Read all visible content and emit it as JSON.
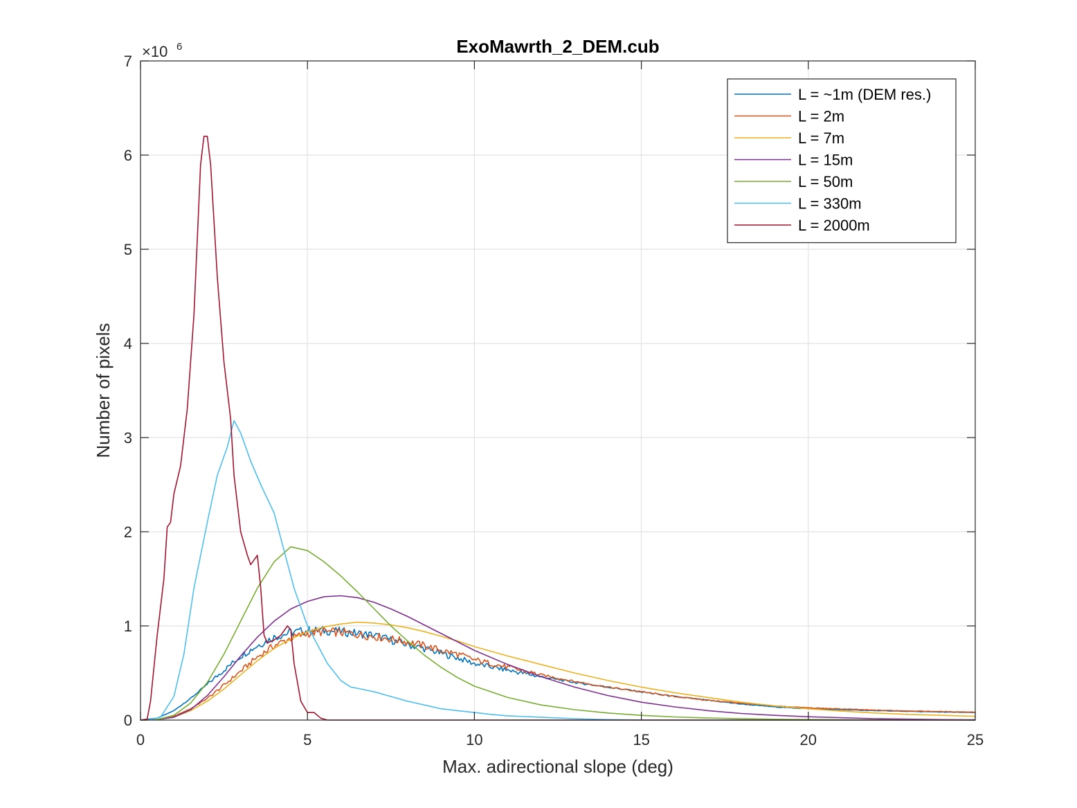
{
  "chart_data": {
    "type": "line",
    "title": "ExoMawrth_2_DEM.cub",
    "xlabel": "Max. adirectional slope (deg)",
    "ylabel": "Number of pixels",
    "xlim": [
      0,
      25
    ],
    "ylim": [
      0,
      7000000
    ],
    "xticks": [
      0,
      5,
      10,
      15,
      20,
      25
    ],
    "yticks": [
      0,
      1,
      2,
      3,
      4,
      5,
      6,
      7
    ],
    "y_exponent_base": "×10",
    "y_exponent_power": "6",
    "y_scale": 1000000,
    "grid": true,
    "legend_position": "top-right",
    "series": [
      {
        "name": "L = ~1m (DEM res.)",
        "color": "#0072BD",
        "noise": true,
        "points": [
          [
            0,
            0
          ],
          [
            0.5,
            20000
          ],
          [
            1,
            100000
          ],
          [
            1.5,
            230000
          ],
          [
            2,
            380000
          ],
          [
            2.5,
            530000
          ],
          [
            3,
            680000
          ],
          [
            3.5,
            790000
          ],
          [
            4,
            880000
          ],
          [
            4.5,
            930000
          ],
          [
            5,
            950000
          ],
          [
            5.5,
            950000
          ],
          [
            6,
            940000
          ],
          [
            6.5,
            920000
          ],
          [
            7,
            900000
          ],
          [
            7.5,
            850000
          ],
          [
            8,
            800000
          ],
          [
            8.5,
            760000
          ],
          [
            9,
            710000
          ],
          [
            9.5,
            660000
          ],
          [
            10,
            600000
          ],
          [
            11,
            530000
          ],
          [
            12,
            460000
          ],
          [
            13,
            400000
          ],
          [
            14,
            350000
          ],
          [
            15,
            300000
          ],
          [
            16,
            250000
          ],
          [
            17,
            210000
          ],
          [
            18,
            170000
          ],
          [
            19,
            140000
          ],
          [
            20,
            120000
          ],
          [
            22,
            100000
          ],
          [
            24,
            85000
          ],
          [
            25,
            80000
          ]
        ]
      },
      {
        "name": "L = 2m",
        "color": "#D95319",
        "noise": true,
        "points": [
          [
            0,
            0
          ],
          [
            0.5,
            5000
          ],
          [
            1,
            40000
          ],
          [
            1.5,
            120000
          ],
          [
            2,
            230000
          ],
          [
            2.5,
            370000
          ],
          [
            3,
            520000
          ],
          [
            3.5,
            670000
          ],
          [
            4,
            790000
          ],
          [
            4.5,
            870000
          ],
          [
            5,
            920000
          ],
          [
            5.5,
            940000
          ],
          [
            6,
            930000
          ],
          [
            6.5,
            910000
          ],
          [
            7,
            890000
          ],
          [
            7.5,
            860000
          ],
          [
            8,
            830000
          ],
          [
            8.5,
            790000
          ],
          [
            9,
            740000
          ],
          [
            9.5,
            700000
          ],
          [
            10,
            640000
          ],
          [
            11,
            560000
          ],
          [
            12,
            480000
          ],
          [
            13,
            410000
          ],
          [
            14,
            350000
          ],
          [
            15,
            300000
          ],
          [
            16,
            250000
          ],
          [
            17,
            210000
          ],
          [
            18,
            180000
          ],
          [
            19,
            150000
          ],
          [
            20,
            130000
          ],
          [
            22,
            105000
          ],
          [
            24,
            90000
          ],
          [
            25,
            85000
          ]
        ]
      },
      {
        "name": "L = 7m",
        "color": "#EDB120",
        "noise": false,
        "points": [
          [
            0,
            0
          ],
          [
            0.5,
            5000
          ],
          [
            1,
            30000
          ],
          [
            1.5,
            100000
          ],
          [
            2,
            200000
          ],
          [
            2.5,
            330000
          ],
          [
            3,
            480000
          ],
          [
            3.5,
            630000
          ],
          [
            4,
            760000
          ],
          [
            4.5,
            860000
          ],
          [
            5,
            940000
          ],
          [
            5.5,
            990000
          ],
          [
            6,
            1020000
          ],
          [
            6.5,
            1040000
          ],
          [
            7,
            1030000
          ],
          [
            7.5,
            1010000
          ],
          [
            8,
            980000
          ],
          [
            8.5,
            940000
          ],
          [
            9,
            890000
          ],
          [
            9.5,
            840000
          ],
          [
            10,
            780000
          ],
          [
            11,
            680000
          ],
          [
            12,
            590000
          ],
          [
            13,
            500000
          ],
          [
            14,
            420000
          ],
          [
            15,
            350000
          ],
          [
            16,
            290000
          ],
          [
            17,
            240000
          ],
          [
            18,
            190000
          ],
          [
            19,
            150000
          ],
          [
            20,
            120000
          ],
          [
            21,
            95000
          ],
          [
            22,
            75000
          ],
          [
            23,
            60000
          ],
          [
            24,
            50000
          ],
          [
            25,
            40000
          ]
        ]
      },
      {
        "name": "L = 15m",
        "color": "#7E2F8E",
        "noise": false,
        "points": [
          [
            0,
            0
          ],
          [
            0.5,
            5000
          ],
          [
            1,
            30000
          ],
          [
            1.5,
            110000
          ],
          [
            2,
            260000
          ],
          [
            2.5,
            460000
          ],
          [
            3,
            680000
          ],
          [
            3.5,
            880000
          ],
          [
            4,
            1050000
          ],
          [
            4.5,
            1180000
          ],
          [
            5,
            1260000
          ],
          [
            5.5,
            1310000
          ],
          [
            6,
            1320000
          ],
          [
            6.5,
            1300000
          ],
          [
            7,
            1250000
          ],
          [
            7.5,
            1180000
          ],
          [
            8,
            1100000
          ],
          [
            8.5,
            1010000
          ],
          [
            9,
            920000
          ],
          [
            9.5,
            830000
          ],
          [
            10,
            740000
          ],
          [
            11,
            590000
          ],
          [
            12,
            460000
          ],
          [
            13,
            350000
          ],
          [
            14,
            260000
          ],
          [
            15,
            190000
          ],
          [
            16,
            140000
          ],
          [
            17,
            100000
          ],
          [
            18,
            70000
          ],
          [
            19,
            50000
          ],
          [
            20,
            35000
          ],
          [
            22,
            15000
          ],
          [
            24,
            5000
          ],
          [
            25,
            3000
          ]
        ]
      },
      {
        "name": "L = 50m",
        "color": "#77AC30",
        "noise": false,
        "points": [
          [
            0,
            0
          ],
          [
            0.5,
            5000
          ],
          [
            1,
            50000
          ],
          [
            1.5,
            180000
          ],
          [
            2,
            400000
          ],
          [
            2.5,
            700000
          ],
          [
            3,
            1050000
          ],
          [
            3.5,
            1400000
          ],
          [
            4,
            1680000
          ],
          [
            4.5,
            1840000
          ],
          [
            5,
            1800000
          ],
          [
            5.5,
            1680000
          ],
          [
            6,
            1530000
          ],
          [
            6.5,
            1360000
          ],
          [
            7,
            1180000
          ],
          [
            7.5,
            1000000
          ],
          [
            8,
            840000
          ],
          [
            8.5,
            690000
          ],
          [
            9,
            560000
          ],
          [
            9.5,
            450000
          ],
          [
            10,
            360000
          ],
          [
            11,
            240000
          ],
          [
            12,
            160000
          ],
          [
            13,
            110000
          ],
          [
            14,
            75000
          ],
          [
            15,
            50000
          ],
          [
            16,
            33000
          ],
          [
            17,
            22000
          ],
          [
            18,
            14000
          ],
          [
            19,
            9000
          ],
          [
            20,
            6000
          ],
          [
            22,
            2000
          ],
          [
            25,
            500
          ]
        ]
      },
      {
        "name": "L = 330m",
        "color": "#4DBEEE",
        "noise": false,
        "points": [
          [
            0,
            0
          ],
          [
            0.3,
            5000
          ],
          [
            0.6,
            30000
          ],
          [
            1,
            250000
          ],
          [
            1.3,
            700000
          ],
          [
            1.6,
            1400000
          ],
          [
            2,
            2100000
          ],
          [
            2.3,
            2600000
          ],
          [
            2.6,
            2900000
          ],
          [
            2.8,
            3180000
          ],
          [
            3,
            3050000
          ],
          [
            3.3,
            2750000
          ],
          [
            3.6,
            2500000
          ],
          [
            4,
            2200000
          ],
          [
            4.3,
            1800000
          ],
          [
            4.6,
            1400000
          ],
          [
            5,
            1000000
          ],
          [
            5.3,
            800000
          ],
          [
            5.6,
            600000
          ],
          [
            6,
            420000
          ],
          [
            6.3,
            350000
          ],
          [
            6.6,
            330000
          ],
          [
            7,
            300000
          ],
          [
            7.5,
            250000
          ],
          [
            8,
            200000
          ],
          [
            8.5,
            160000
          ],
          [
            9,
            120000
          ],
          [
            9.5,
            100000
          ],
          [
            10,
            80000
          ],
          [
            10.5,
            60000
          ],
          [
            11,
            45000
          ],
          [
            12,
            30000
          ],
          [
            13,
            15000
          ],
          [
            14,
            5000
          ],
          [
            15,
            1000
          ],
          [
            16,
            0
          ],
          [
            25,
            0
          ]
        ]
      },
      {
        "name": "L = 2000m",
        "color": "#A2142F",
        "noise": false,
        "points": [
          [
            0,
            0
          ],
          [
            0.2,
            10000
          ],
          [
            0.3,
            200000
          ],
          [
            0.5,
            900000
          ],
          [
            0.7,
            1500000
          ],
          [
            0.8,
            2050000
          ],
          [
            0.9,
            2100000
          ],
          [
            1,
            2400000
          ],
          [
            1.2,
            2700000
          ],
          [
            1.4,
            3300000
          ],
          [
            1.6,
            4300000
          ],
          [
            1.8,
            5900000
          ],
          [
            1.9,
            6200000
          ],
          [
            2,
            6200000
          ],
          [
            2.1,
            5900000
          ],
          [
            2.3,
            4700000
          ],
          [
            2.5,
            3800000
          ],
          [
            2.7,
            3200000
          ],
          [
            2.8,
            2600000
          ],
          [
            3,
            2000000
          ],
          [
            3.2,
            1750000
          ],
          [
            3.3,
            1650000
          ],
          [
            3.4,
            1700000
          ],
          [
            3.5,
            1750000
          ],
          [
            3.6,
            1400000
          ],
          [
            3.7,
            900000
          ],
          [
            3.8,
            820000
          ],
          [
            4,
            850000
          ],
          [
            4.2,
            900000
          ],
          [
            4.4,
            1000000
          ],
          [
            4.5,
            960000
          ],
          [
            4.6,
            600000
          ],
          [
            4.8,
            200000
          ],
          [
            5,
            80000
          ],
          [
            5.2,
            80000
          ],
          [
            5.4,
            20000
          ],
          [
            5.6,
            0
          ],
          [
            25,
            0
          ]
        ]
      }
    ]
  }
}
